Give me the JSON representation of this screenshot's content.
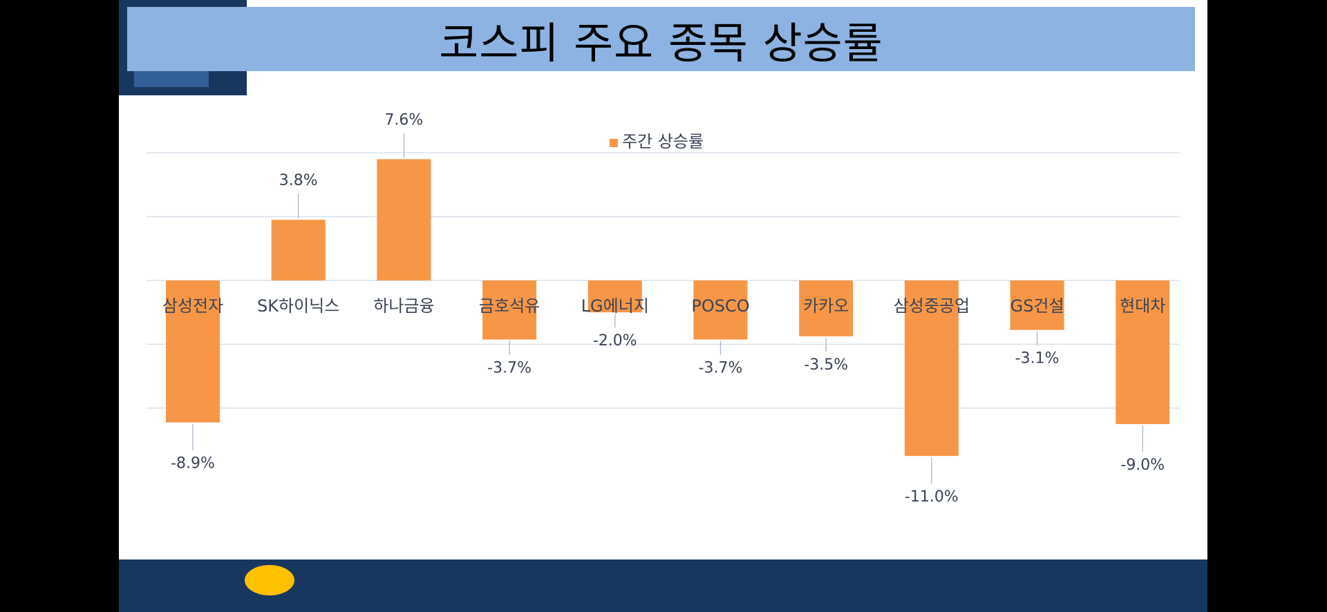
{
  "chart_data": {
    "type": "bar",
    "title": "코스피 주요 종목 상승률",
    "legend": {
      "position": "top",
      "label": "주간 상승률"
    },
    "series": [
      {
        "name": "주간 상승률",
        "color": "#f79646",
        "values": [
          -8.9,
          3.8,
          7.6,
          -3.7,
          -2.0,
          -3.7,
          -3.5,
          -11.0,
          -3.1,
          -9.0
        ]
      }
    ],
    "categories": [
      "삼성전자",
      "SK하이닉스",
      "하나금융",
      "금호석유",
      "LG에너지",
      "POSCO",
      "카카오",
      "삼성중공업",
      "GS건설",
      "현대차"
    ],
    "data_labels": [
      "-8.9%",
      "3.8%",
      "7.6%",
      "-3.7%",
      "-2.0%",
      "-3.7%",
      "-3.5%",
      "-11.0%",
      "-3.1%",
      "-9.0%"
    ],
    "ylim": [
      -10,
      10
    ],
    "grid": true,
    "colors": {
      "bar": "#f79646",
      "grid": "#d9e1ec",
      "text": "#3a4456",
      "leader": "#a9b7cc"
    }
  }
}
